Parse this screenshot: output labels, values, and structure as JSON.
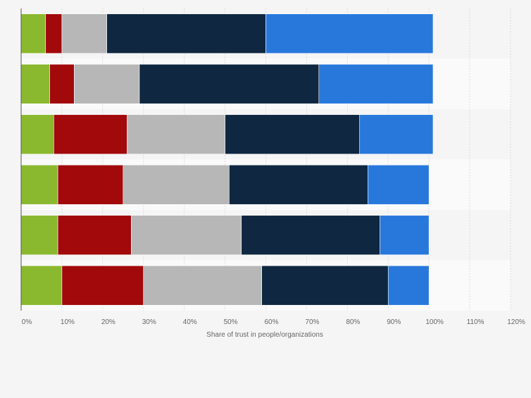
{
  "chart_data": {
    "type": "bar",
    "orientation": "horizontal",
    "stacked": true,
    "categories": [
      "",
      "",
      "",
      "",
      "",
      ""
    ],
    "series": [
      {
        "color": "#8ab82f",
        "values": [
          6,
          7,
          8,
          9,
          9,
          10
        ]
      },
      {
        "color": "#a1090b",
        "values": [
          4,
          6,
          18,
          16,
          18,
          20
        ]
      },
      {
        "color": "#b7b7b7",
        "values": [
          11,
          16,
          24,
          26,
          27,
          29
        ]
      },
      {
        "color": "#0f2740",
        "values": [
          39,
          44,
          33,
          34,
          34,
          31
        ]
      },
      {
        "color": "#2878dc",
        "values": [
          41,
          28,
          18,
          15,
          12,
          10
        ]
      }
    ],
    "xlabel": "Share of trust in people/organizations",
    "ylabel": "",
    "xlim": [
      0,
      120
    ],
    "x_ticks": [
      0,
      10,
      20,
      30,
      40,
      50,
      60,
      70,
      80,
      90,
      100,
      110,
      120
    ],
    "x_tick_labels": [
      "0%",
      "10%",
      "20%",
      "30%",
      "40%",
      "50%",
      "60%",
      "70%",
      "80%",
      "90%",
      "100%",
      "110%",
      "120%"
    ],
    "grid": true,
    "legend": "none"
  }
}
